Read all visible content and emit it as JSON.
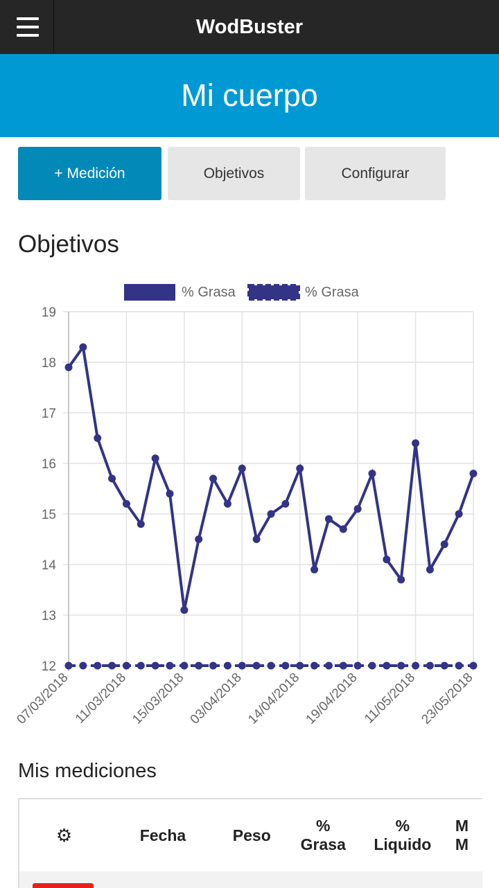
{
  "app": {
    "title": "WodBuster"
  },
  "banner": {
    "title": "Mi cuerpo"
  },
  "buttons": {
    "add": "+ Medición",
    "goals": "Objetivos",
    "settings": "Configurar"
  },
  "sections": {
    "goals_title": "Objetivos",
    "measures_title": "Mis mediciones"
  },
  "icons": {
    "menu": "hamburger-menu-icon",
    "settings": "gear-icon"
  },
  "colors": {
    "topbar": "#262626",
    "banner": "#0099d4",
    "primary": "#0389b8",
    "series": "#333387",
    "delete": "#e62020"
  },
  "chart_data": {
    "type": "line",
    "x_tick_labels": [
      "07/03/2018",
      "11/03/2018",
      "15/03/2018",
      "03/04/2018",
      "14/04/2018",
      "19/04/2018",
      "11/05/2018",
      "23/05/2018"
    ],
    "ylim": [
      12,
      19
    ],
    "yticks": [
      12,
      13,
      14,
      15,
      16,
      17,
      18,
      19
    ],
    "legend_position": "top",
    "grid": true,
    "series": [
      {
        "name": "% Grasa",
        "style": "solid",
        "values": [
          17.9,
          18.3,
          16.5,
          15.7,
          15.2,
          14.8,
          16.1,
          15.4,
          13.1,
          14.5,
          15.7,
          15.2,
          15.9,
          14.5,
          15.0,
          15.2,
          15.9,
          13.9,
          14.9,
          14.7,
          15.1,
          15.8,
          14.1,
          13.7,
          16.4,
          13.9,
          14.4,
          15.0,
          15.8
        ]
      },
      {
        "name": "% Grasa",
        "style": "dashed",
        "values": [
          12,
          12,
          12,
          12,
          12,
          12,
          12,
          12,
          12,
          12,
          12,
          12,
          12,
          12,
          12,
          12,
          12,
          12,
          12,
          12,
          12,
          12,
          12,
          12,
          12,
          12,
          12,
          12,
          12
        ]
      }
    ]
  },
  "table": {
    "headers": [
      {
        "line1": "",
        "line2": ""
      },
      {
        "line1": "Fecha",
        "line2": ""
      },
      {
        "line1": "Peso",
        "line2": ""
      },
      {
        "line1": "%",
        "line2": "Grasa"
      },
      {
        "line1": "%",
        "line2": "Liquido"
      },
      {
        "line1": "M",
        "line2": "M"
      }
    ]
  }
}
